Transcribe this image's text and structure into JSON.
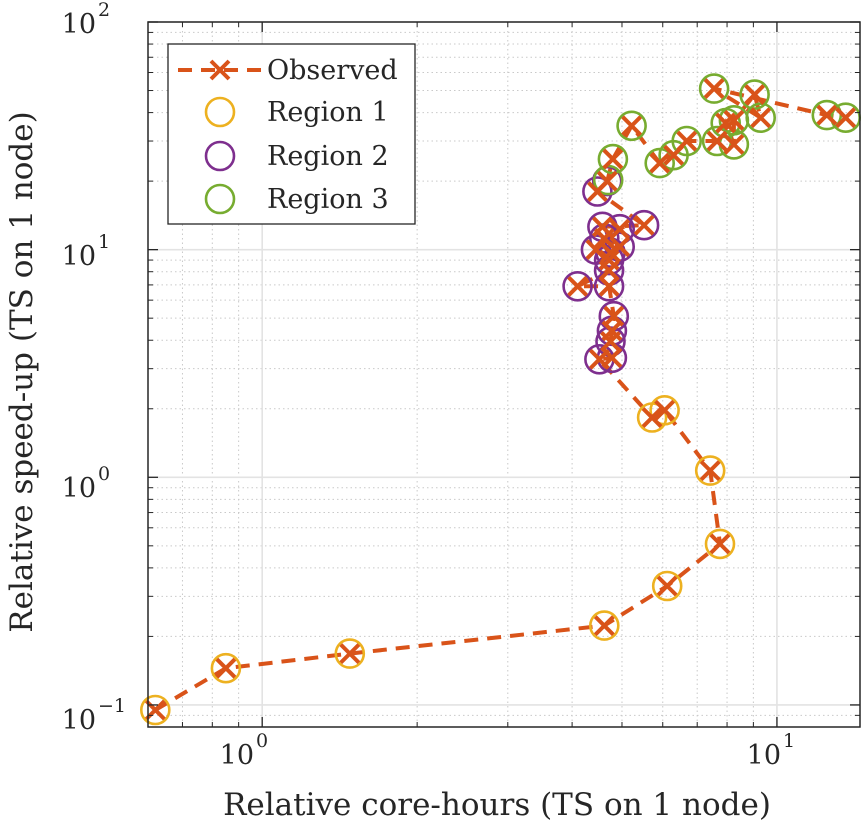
{
  "chart_data": {
    "type": "scatter",
    "xscale": "log",
    "yscale": "log",
    "xlim": [
      0.6,
      14.5
    ],
    "ylim": [
      0.08,
      100
    ],
    "xlabel": "Relative core-hours (TS on 1 node)",
    "ylabel": "Relative speed-up (TS on 1 node)",
    "x_ticks": [
      {
        "value": 1,
        "label": "10",
        "exp": "0"
      },
      {
        "value": 10,
        "label": "10",
        "exp": "1"
      }
    ],
    "y_ticks": [
      {
        "value": 0.1,
        "label": "10",
        "exp": "−1"
      },
      {
        "value": 1,
        "label": "10",
        "exp": "0"
      },
      {
        "value": 10,
        "label": "10",
        "exp": "1"
      },
      {
        "value": 100,
        "label": "10",
        "exp": "2"
      }
    ],
    "grid": true,
    "legend": {
      "position": "top-left"
    },
    "series": [
      {
        "name": "Observed",
        "style": "dashed-line-x-marker",
        "color": "#D95319",
        "points": [
          [
            0.62,
            0.095
          ],
          [
            0.85,
            0.145
          ],
          [
            1.48,
            0.168
          ],
          [
            4.62,
            0.223
          ],
          [
            6.12,
            0.333
          ],
          [
            7.75,
            0.51
          ],
          [
            7.42,
            1.07
          ],
          [
            6.05,
            1.97
          ],
          [
            5.72,
            1.83
          ],
          [
            4.52,
            3.3
          ],
          [
            4.78,
            3.35
          ],
          [
            4.75,
            3.95
          ],
          [
            4.78,
            4.4
          ],
          [
            4.82,
            5.1
          ],
          [
            4.72,
            6.9
          ],
          [
            4.1,
            6.9
          ],
          [
            4.72,
            8.1
          ],
          [
            4.72,
            9.0
          ],
          [
            4.45,
            10.0
          ],
          [
            4.75,
            9.7
          ],
          [
            4.95,
            10.3
          ],
          [
            4.62,
            11.2
          ],
          [
            4.95,
            12.3
          ],
          [
            4.58,
            12.6
          ],
          [
            5.52,
            12.8
          ],
          [
            4.48,
            18.0
          ],
          [
            4.68,
            20.0
          ],
          [
            4.8,
            25.0
          ],
          [
            5.22,
            35.0
          ],
          [
            5.92,
            24.0
          ],
          [
            6.3,
            26.0
          ],
          [
            6.68,
            30.0
          ],
          [
            7.65,
            30.0
          ],
          [
            7.95,
            36.0
          ],
          [
            8.25,
            29.0
          ],
          [
            8.25,
            37.0
          ],
          [
            9.05,
            48.0
          ],
          [
            9.3,
            38.0
          ],
          [
            7.55,
            51.0
          ],
          [
            12.5,
            39.0
          ],
          [
            13.6,
            38.0
          ]
        ]
      },
      {
        "name": "Region 1",
        "style": "open-circle",
        "color": "#EDB120",
        "points": [
          [
            0.62,
            0.095
          ],
          [
            0.85,
            0.145
          ],
          [
            1.48,
            0.168
          ],
          [
            4.62,
            0.223
          ],
          [
            6.12,
            0.333
          ],
          [
            7.75,
            0.51
          ],
          [
            7.42,
            1.07
          ],
          [
            6.05,
            1.97
          ],
          [
            5.72,
            1.83
          ]
        ]
      },
      {
        "name": "Region 2",
        "style": "open-circle",
        "color": "#7E2F8E",
        "points": [
          [
            4.52,
            3.3
          ],
          [
            4.78,
            3.35
          ],
          [
            4.75,
            3.95
          ],
          [
            4.78,
            4.4
          ],
          [
            4.82,
            5.1
          ],
          [
            4.72,
            6.9
          ],
          [
            4.1,
            6.9
          ],
          [
            4.72,
            8.1
          ],
          [
            4.72,
            9.0
          ],
          [
            4.45,
            10.0
          ],
          [
            4.75,
            9.7
          ],
          [
            4.95,
            10.3
          ],
          [
            4.62,
            11.2
          ],
          [
            4.95,
            12.3
          ],
          [
            4.58,
            12.6
          ],
          [
            5.52,
            12.8
          ],
          [
            4.48,
            18.0
          ],
          [
            4.68,
            20.0
          ]
        ]
      },
      {
        "name": "Region 3",
        "style": "open-circle",
        "color": "#77AC30",
        "points": [
          [
            4.7,
            20.2
          ],
          [
            4.8,
            25.0
          ],
          [
            5.22,
            35.0
          ],
          [
            5.92,
            24.0
          ],
          [
            6.3,
            26.0
          ],
          [
            6.68,
            30.0
          ],
          [
            7.65,
            30.0
          ],
          [
            7.95,
            36.0
          ],
          [
            8.25,
            29.0
          ],
          [
            8.25,
            37.0
          ],
          [
            9.05,
            48.0
          ],
          [
            9.3,
            38.0
          ],
          [
            7.55,
            51.0
          ],
          [
            12.5,
            39.0
          ],
          [
            13.6,
            38.0
          ]
        ]
      }
    ]
  }
}
